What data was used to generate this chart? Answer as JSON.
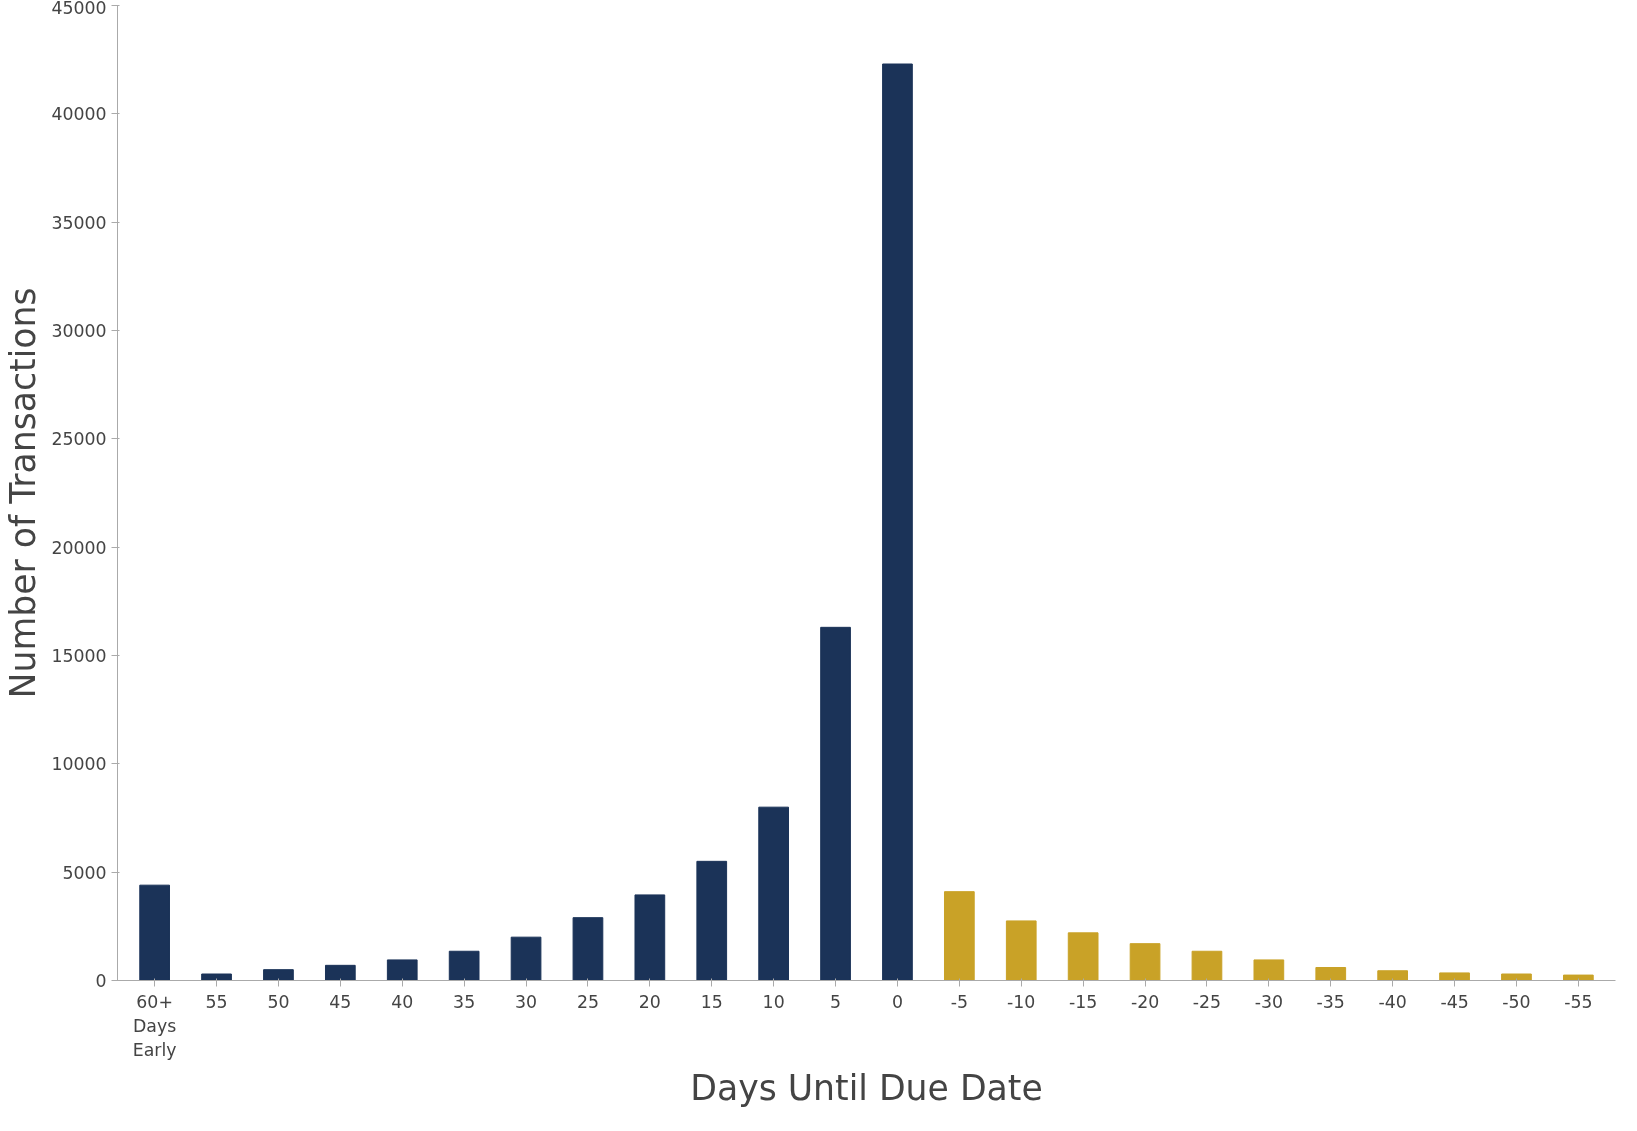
{
  "chart_data": {
    "type": "bar",
    "xlabel": "Days Until Due Date",
    "ylabel": "Number of Transactions",
    "categories": [
      "60+\nDays\nEarly",
      "55",
      "50",
      "45",
      "40",
      "35",
      "30",
      "25",
      "20",
      "15",
      "10",
      "5",
      "0",
      "-5",
      "-10",
      "-15",
      "-20",
      "-25",
      "-30",
      "-35",
      "-40",
      "-45",
      "-50",
      "-55"
    ],
    "values": [
      4400,
      300,
      500,
      700,
      950,
      1350,
      2000,
      2900,
      3950,
      5500,
      8000,
      16300,
      42300,
      4100,
      2750,
      2200,
      1700,
      1350,
      950,
      600,
      450,
      350,
      300,
      250
    ],
    "colors": [
      "#1b3358",
      "#1b3358",
      "#1b3358",
      "#1b3358",
      "#1b3358",
      "#1b3358",
      "#1b3358",
      "#1b3358",
      "#1b3358",
      "#1b3358",
      "#1b3358",
      "#1b3358",
      "#1b3358",
      "#c9a227",
      "#c9a227",
      "#c9a227",
      "#c9a227",
      "#c9a227",
      "#c9a227",
      "#c9a227",
      "#c9a227",
      "#c9a227",
      "#c9a227",
      "#c9a227"
    ],
    "ylim": [
      0,
      45000
    ],
    "yticks": [
      0,
      5000,
      10000,
      15000,
      20000,
      25000,
      30000,
      35000,
      40000,
      45000
    ],
    "grid": false
  }
}
